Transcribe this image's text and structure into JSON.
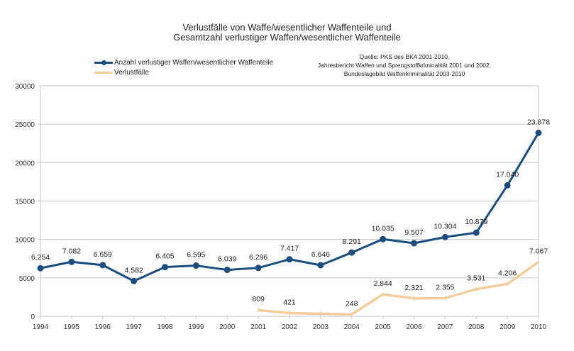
{
  "chart_data": {
    "type": "line",
    "title": [
      "Verlustfälle von Waffe/wesentlicher Waffenteile und",
      "Gesamtzahl verlustiger Waffen/wesentlicher Waffenteile"
    ],
    "source": [
      "Quelle: PKS des BKA 2001-2010,",
      "Jahresbericht Waffen und Sprengstoffkriminalität 2001 und 2002,",
      "Bundeslagebild Waffenkriminalität 2003-2010"
    ],
    "xlabel": "",
    "ylabel": "",
    "ylim": [
      0,
      30000
    ],
    "yticks": [
      "0",
      "5000",
      "10000",
      "15000",
      "20000",
      "25000",
      "30000"
    ],
    "grid": true,
    "legend_position": "top-left",
    "categories": [
      "1994",
      "1995",
      "1996",
      "1997",
      "1998",
      "1999",
      "2000",
      "2001",
      "2002",
      "2003",
      "2004",
      "2005",
      "2006",
      "2007",
      "2008",
      "2009",
      "2010"
    ],
    "series": [
      {
        "name": "Anzahl verlustiger Waffen/wesentlicher Waffenteile",
        "color": "#1a4e80",
        "values": [
          6254,
          7082,
          6659,
          4582,
          6405,
          6595,
          6039,
          6296,
          7417,
          6646,
          8291,
          10035,
          9507,
          10304,
          10879,
          17040,
          23878
        ],
        "labels": [
          "6.254",
          "7.082",
          "6.659",
          "4.582",
          "6.405",
          "6.595",
          "6.039",
          "6.296",
          "7.417",
          "6.646",
          "8.291",
          "10.035",
          "9.507",
          "10.304",
          "10.879",
          "17.040",
          "23.878"
        ]
      },
      {
        "name": "Verlustfälle",
        "color": "#f5cd9b",
        "values": [
          null,
          null,
          null,
          null,
          null,
          null,
          null,
          809,
          421,
          330,
          248,
          2844,
          2321,
          2355,
          3531,
          4206,
          7067
        ],
        "labels": [
          null,
          null,
          null,
          null,
          null,
          null,
          null,
          "809",
          "421",
          null,
          "248",
          "2.844",
          "2.321",
          "2.355",
          "3.531",
          "4.206",
          "7.067"
        ]
      }
    ]
  }
}
